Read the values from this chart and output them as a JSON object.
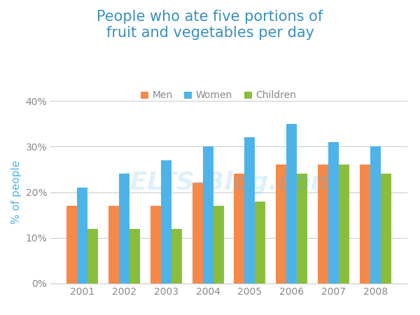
{
  "title": "People who ate five portions of\nfruit and vegetables per day",
  "ylabel": "% of people",
  "years": [
    2001,
    2002,
    2003,
    2004,
    2005,
    2006,
    2007,
    2008
  ],
  "men": [
    17,
    17,
    17,
    22,
    24,
    26,
    26,
    26
  ],
  "women": [
    21,
    24,
    27,
    30,
    32,
    35,
    31,
    30
  ],
  "children": [
    12,
    12,
    12,
    17,
    18,
    24,
    26,
    24
  ],
  "color_men": "#F4894A",
  "color_women": "#4EB3E8",
  "color_children": "#8BBD3C",
  "title_color": "#3A8FBB",
  "axis_label_color": "#4EB3E8",
  "tick_color": "#888888",
  "grid_color": "#cccccc",
  "ylim": [
    0,
    40
  ],
  "yticks": [
    0,
    10,
    20,
    30,
    40
  ],
  "ytick_labels": [
    "0%",
    "10%",
    "20%",
    "30%",
    "40%"
  ],
  "legend_labels": [
    "Men",
    "Women",
    "Children"
  ],
  "bar_width": 0.25,
  "title_fontsize": 15,
  "legend_fontsize": 10,
  "axis_label_fontsize": 11,
  "tick_fontsize": 10,
  "background_color": "#ffffff",
  "watermark_text": "IELTS-Blog.com",
  "watermark_color": "#4EB3E8",
  "watermark_alpha": 0.18
}
